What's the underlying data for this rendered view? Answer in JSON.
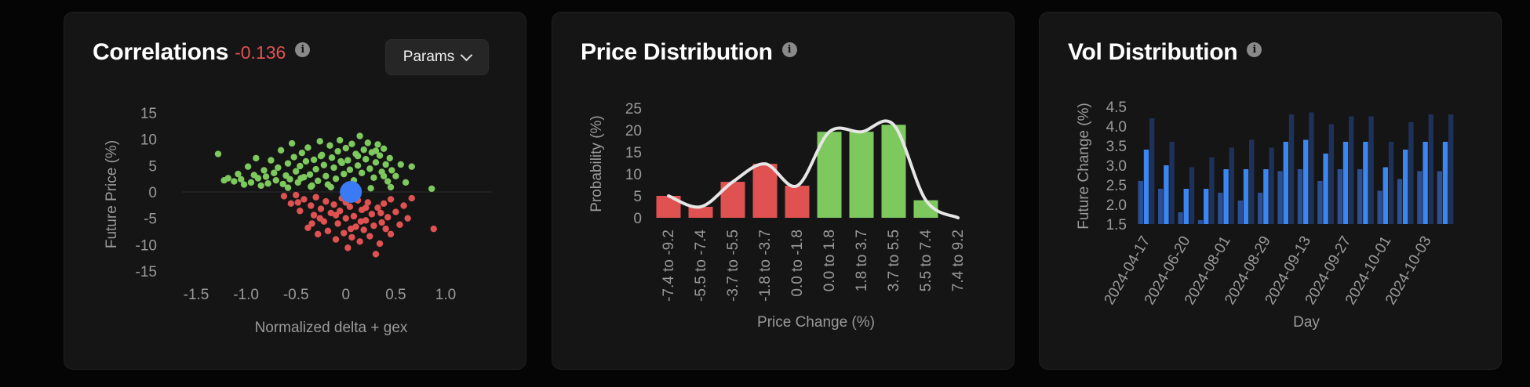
{
  "correlations": {
    "title": "Correlations",
    "value": "-0.136",
    "info_icon": "info-icon",
    "params_button": "Params",
    "chart_data": {
      "type": "scatter",
      "xlabel": "Normalized delta + gex",
      "ylabel": "Future Price (%)",
      "xlim": [
        -1.5,
        1.0
      ],
      "ylim": [
        -15,
        15
      ],
      "x_ticks": [
        "-1.5",
        "-1.0",
        "-0.5",
        "0",
        "0.5",
        "1.0"
      ],
      "y_ticks": [
        "15",
        "10",
        "5",
        "0",
        "-5",
        "-10",
        "-15"
      ],
      "series": [
        {
          "color": "#7dc95e",
          "points": [
            [
              -1.28,
              7.2
            ],
            [
              -1.22,
              2.2
            ],
            [
              -1.18,
              2.6
            ],
            [
              -1.12,
              2.0
            ],
            [
              -1.08,
              3.4
            ],
            [
              -1.05,
              2.4
            ],
            [
              -1.02,
              1.4
            ],
            [
              -0.98,
              4.8
            ],
            [
              -0.95,
              1.8
            ],
            [
              -0.92,
              3.2
            ],
            [
              -0.9,
              6.4
            ],
            [
              -0.88,
              2.6
            ],
            [
              -0.85,
              1.2
            ],
            [
              -0.82,
              4.1
            ],
            [
              -0.8,
              2.9
            ],
            [
              -0.78,
              1.6
            ],
            [
              -0.75,
              6.0
            ],
            [
              -0.72,
              3.6
            ],
            [
              -0.7,
              2.2
            ],
            [
              -0.68,
              4.6
            ],
            [
              -0.65,
              7.9
            ],
            [
              -0.63,
              1.5
            ],
            [
              -0.6,
              3.1
            ],
            [
              -0.58,
              5.4
            ],
            [
              -0.56,
              2.4
            ],
            [
              -0.54,
              9.2
            ],
            [
              -0.52,
              6.6
            ],
            [
              -0.5,
              3.9
            ],
            [
              -0.48,
              1.8
            ],
            [
              -0.46,
              4.9
            ],
            [
              -0.44,
              7.4
            ],
            [
              -0.42,
              2.8
            ],
            [
              -0.4,
              5.8
            ],
            [
              -0.38,
              8.4
            ],
            [
              -0.36,
              3.3
            ],
            [
              -0.34,
              1.2
            ],
            [
              -0.32,
              6.1
            ],
            [
              -0.3,
              4.3
            ],
            [
              -0.28,
              2.1
            ],
            [
              -0.26,
              9.6
            ],
            [
              -0.24,
              7.0
            ],
            [
              -0.22,
              5.1
            ],
            [
              -0.2,
              3.0
            ],
            [
              -0.18,
              1.4
            ],
            [
              -0.16,
              8.8
            ],
            [
              -0.14,
              6.5
            ],
            [
              -0.12,
              4.6
            ],
            [
              -0.1,
              2.5
            ],
            [
              -0.08,
              7.7
            ],
            [
              -0.06,
              9.8
            ],
            [
              -0.04,
              5.5
            ],
            [
              -0.02,
              3.4
            ],
            [
              0.0,
              8.3
            ],
            [
              0.02,
              6.0
            ],
            [
              0.04,
              4.2
            ],
            [
              0.06,
              9.1
            ],
            [
              0.08,
              2.2
            ],
            [
              0.1,
              7.2
            ],
            [
              0.12,
              5.0
            ],
            [
              0.14,
              10.6
            ],
            [
              0.16,
              3.6
            ],
            [
              0.18,
              8.0
            ],
            [
              0.2,
              6.2
            ],
            [
              0.22,
              9.3
            ],
            [
              0.24,
              4.4
            ],
            [
              0.26,
              7.5
            ],
            [
              0.28,
              2.7
            ],
            [
              0.3,
              5.6
            ],
            [
              0.32,
              9.0
            ],
            [
              0.34,
              6.9
            ],
            [
              0.36,
              3.8
            ],
            [
              0.38,
              8.2
            ],
            [
              0.4,
              5.2
            ],
            [
              0.42,
              2.0
            ],
            [
              0.44,
              6.4
            ],
            [
              0.46,
              4.1
            ],
            [
              0.5,
              3.0
            ],
            [
              0.55,
              5.2
            ],
            [
              0.6,
              1.8
            ],
            [
              0.66,
              4.8
            ],
            [
              0.86,
              0.6
            ],
            [
              -0.58,
              0.8
            ],
            [
              -0.35,
              1.0
            ],
            [
              -0.15,
              0.9
            ],
            [
              0.05,
              1.1
            ],
            [
              0.25,
              0.7
            ],
            [
              0.45,
              0.9
            ],
            [
              -0.25,
              6.8
            ],
            [
              0.3,
              7.8
            ],
            [
              -0.05,
              5.8
            ],
            [
              0.12,
              6.8
            ],
            [
              -0.45,
              2.6
            ],
            [
              0.38,
              3.0
            ]
          ]
        },
        {
          "color": "#e05252",
          "points": [
            [
              -0.62,
              -0.8
            ],
            [
              -0.55,
              -2.2
            ],
            [
              -0.5,
              -0.6
            ],
            [
              -0.46,
              -3.6
            ],
            [
              -0.42,
              -1.4
            ],
            [
              -0.38,
              -6.8
            ],
            [
              -0.35,
              -2.6
            ],
            [
              -0.32,
              -4.4
            ],
            [
              -0.3,
              -1.0
            ],
            [
              -0.28,
              -8.0
            ],
            [
              -0.25,
              -3.2
            ],
            [
              -0.22,
              -5.6
            ],
            [
              -0.2,
              -1.8
            ],
            [
              -0.18,
              -7.4
            ],
            [
              -0.15,
              -4.0
            ],
            [
              -0.12,
              -2.4
            ],
            [
              -0.1,
              -9.0
            ],
            [
              -0.08,
              -6.0
            ],
            [
              -0.06,
              -3.6
            ],
            [
              -0.04,
              -1.2
            ],
            [
              -0.02,
              -7.8
            ],
            [
              0.0,
              -5.0
            ],
            [
              0.02,
              -10.6
            ],
            [
              0.04,
              -2.8
            ],
            [
              0.06,
              -8.6
            ],
            [
              0.08,
              -4.6
            ],
            [
              0.1,
              -6.6
            ],
            [
              0.12,
              -1.6
            ],
            [
              0.14,
              -9.4
            ],
            [
              0.16,
              -3.4
            ],
            [
              0.18,
              -7.2
            ],
            [
              0.2,
              -5.4
            ],
            [
              0.22,
              -2.0
            ],
            [
              0.24,
              -8.4
            ],
            [
              0.26,
              -4.2
            ],
            [
              0.28,
              -6.4
            ],
            [
              0.3,
              -11.8
            ],
            [
              0.32,
              -3.0
            ],
            [
              0.34,
              -9.8
            ],
            [
              0.36,
              -5.8
            ],
            [
              0.38,
              -2.2
            ],
            [
              0.4,
              -7.0
            ],
            [
              0.42,
              -4.8
            ],
            [
              0.45,
              -1.4
            ],
            [
              0.5,
              -3.8
            ],
            [
              0.54,
              -6.2
            ],
            [
              0.58,
              -2.6
            ],
            [
              0.62,
              -5.0
            ],
            [
              0.66,
              -1.2
            ],
            [
              0.88,
              -7.0
            ],
            [
              -0.48,
              -2.0
            ],
            [
              -0.26,
              -5.0
            ],
            [
              0.0,
              -2.0
            ],
            [
              0.2,
              -3.0
            ],
            [
              0.35,
              -4.0
            ],
            [
              -0.1,
              -4.4
            ],
            [
              0.15,
              -5.6
            ],
            [
              -0.34,
              -6.0
            ],
            [
              0.45,
              -8.0
            ],
            [
              0.05,
              -7.0
            ]
          ]
        }
      ],
      "highlight": {
        "x": 0.05,
        "y": 0.0,
        "color": "#3a7bf5"
      }
    }
  },
  "price": {
    "title": "Price Distribution",
    "info_icon": "info-icon",
    "chart_data": {
      "type": "bar",
      "xlabel": "Price Change (%)",
      "ylabel": "Probability (%)",
      "ylim": [
        0,
        25
      ],
      "y_ticks": [
        "25",
        "20",
        "15",
        "10",
        "5",
        "0"
      ],
      "categories": [
        "-7.4 to -9.2",
        "-5.5 to -7.4",
        "-3.7 to -5.5",
        "-1.8 to -3.7",
        "0.0 to -1.8",
        "0.0 to 1.8",
        "1.8 to 3.7",
        "3.7 to 5.5",
        "5.5 to 7.4",
        "7.4 to 9.2"
      ],
      "values": [
        5.0,
        2.5,
        8.2,
        12.3,
        7.3,
        19.6,
        19.6,
        21.2,
        4.0,
        0
      ],
      "colors": [
        "#e05252",
        "#e05252",
        "#e05252",
        "#e05252",
        "#e05252",
        "#7dc95e",
        "#7dc95e",
        "#7dc95e",
        "#7dc95e",
        "#7dc95e"
      ],
      "curve_color": "#e6e6e6"
    }
  },
  "vol": {
    "title": "Vol Distribution",
    "info_icon": "info-icon",
    "chart_data": {
      "type": "bar",
      "xlabel": "Day",
      "ylabel": "Future Change (%)",
      "ylim": [
        1.5,
        4.5
      ],
      "y_ticks": [
        "4.5",
        "4.0",
        "3.5",
        "3.0",
        "2.5",
        "2.0",
        "1.5"
      ],
      "x_tick_labels": [
        "2024-04-17",
        "2024-06-20",
        "2024-08-01",
        "2024-08-29",
        "2024-09-13",
        "2024-09-27",
        "2024-10-01",
        "2024-10-03"
      ],
      "series": [
        {
          "color": "#2b4f92",
          "values": [
            2.6,
            2.4,
            1.8,
            1.6,
            2.3,
            2.1,
            2.3,
            2.85,
            2.9,
            2.6,
            2.9,
            2.9,
            2.35,
            2.65,
            2.85,
            2.85
          ]
        },
        {
          "color": "#3b86f0",
          "values": [
            3.4,
            3.0,
            2.4,
            2.4,
            2.9,
            2.9,
            2.9,
            3.6,
            3.65,
            3.3,
            3.6,
            3.6,
            2.95,
            3.4,
            3.6,
            3.6
          ]
        },
        {
          "color": "#1e3158",
          "values": [
            4.2,
            3.6,
            2.95,
            3.2,
            3.45,
            3.65,
            3.45,
            4.3,
            4.35,
            4.05,
            4.25,
            4.25,
            3.6,
            4.1,
            4.3,
            4.3
          ]
        }
      ]
    }
  }
}
